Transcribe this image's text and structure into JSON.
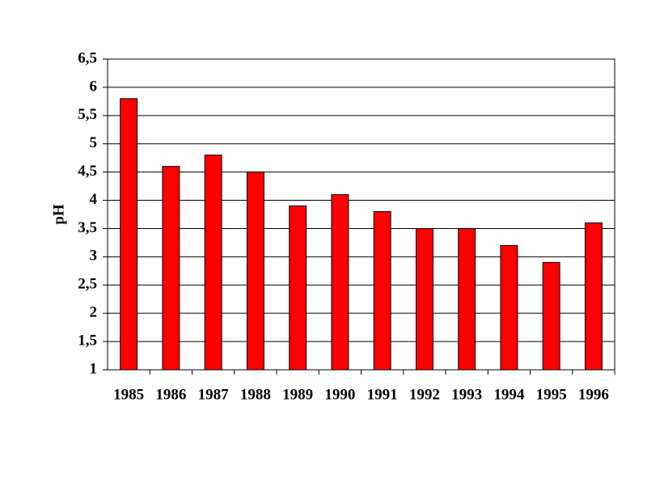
{
  "chart_data": {
    "type": "bar",
    "y_label": "pH",
    "categories": [
      "1985",
      "1986",
      "1987",
      "1988",
      "1989",
      "1990",
      "1991",
      "1992",
      "1993",
      "1994",
      "1995",
      "1996"
    ],
    "values": [
      5.8,
      4.6,
      4.8,
      4.5,
      3.9,
      4.1,
      3.8,
      3.5,
      3.5,
      3.2,
      2.9,
      3.6
    ],
    "color": "#ff0000",
    "ylim": [
      1,
      6.5
    ],
    "yticks": [
      1,
      {
        "value": 1.5,
        "label": "1,5"
      },
      2,
      {
        "value": 2.5,
        "label": "2,5"
      },
      3,
      {
        "value": 3.5,
        "label": "3,5"
      },
      4,
      {
        "value": 4.5,
        "label": "4,5"
      },
      5,
      {
        "value": 5.5,
        "label": "5,5"
      },
      6,
      {
        "value": 6.5,
        "label": "6,5"
      }
    ],
    "grid": true
  }
}
